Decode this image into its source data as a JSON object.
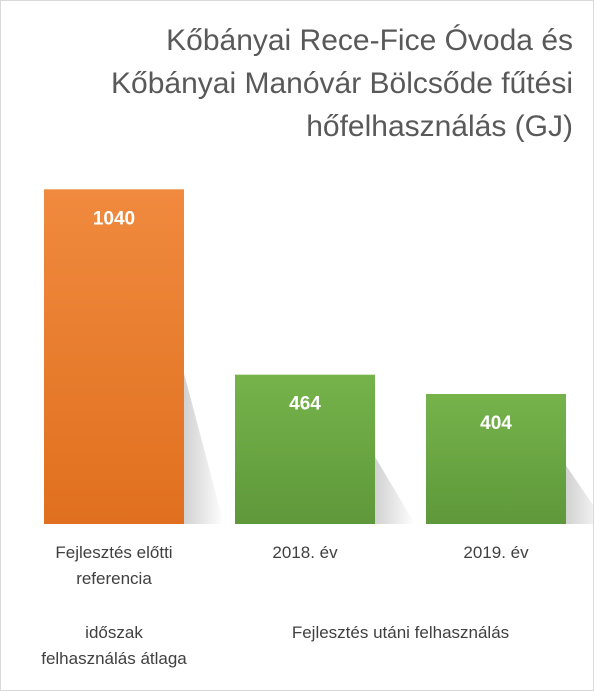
{
  "chart_data": {
    "type": "bar",
    "title": "Kőbányai Rece-Fice Óvoda és Kőbányai Manóvár Bölcsőde fűtési hőfelhasználás (GJ)",
    "categories": [
      "Fejlesztés előtti referencia",
      "2018. év",
      "2019. év"
    ],
    "category_groups": [
      {
        "label": "időszak felhasználás átlaga",
        "count": 1
      },
      {
        "label": "Fejlesztés utáni felhasználás",
        "count": 2
      }
    ],
    "values": [
      1040,
      464,
      404
    ],
    "colors": [
      "#ed7d31",
      "#70ad47",
      "#70ad47"
    ],
    "ylim": [
      0,
      1100
    ]
  }
}
